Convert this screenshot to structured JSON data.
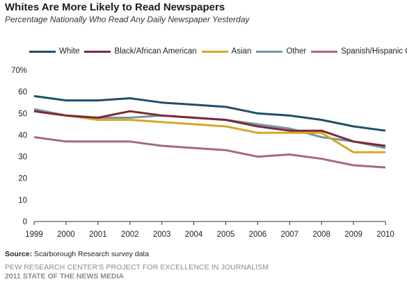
{
  "header": {
    "title": "Whites Are More Likely to Read Newspapers",
    "subtitle": "Percentage Nationally Who Read Any Daily Newspaper Yesterday"
  },
  "footer": {
    "source_label": "Source:",
    "source_text": " Scarborough Research survey data",
    "credit_line1": "PEW RESEARCH CENTER'S PROJECT FOR EXCELLENCE IN JOURNALISM",
    "credit_line2": "2011 STATE OF THE NEWS MEDIA"
  },
  "chart_data": {
    "type": "line",
    "title": "Whites Are More Likely to Read Newspapers",
    "subtitle": "Percentage Nationally Who Read Any Daily Newspaper Yesterday",
    "xlabel": "",
    "ylabel": "",
    "x": [
      "1999",
      "2000",
      "2001",
      "2002",
      "2003",
      "2004",
      "2005",
      "2006",
      "2007",
      "2008",
      "2009",
      "2010"
    ],
    "ylim": [
      0,
      70
    ],
    "yticks": [
      0,
      10,
      20,
      30,
      40,
      50,
      60,
      70
    ],
    "ytick_labels": [
      "0",
      "10",
      "20",
      "30",
      "40",
      "50",
      "60",
      "70%"
    ],
    "grid": false,
    "legend_position": "top",
    "series": [
      {
        "name": "White",
        "color": "#1f4e6e",
        "values": [
          58,
          56,
          56,
          57,
          55,
          54,
          53,
          50,
          49,
          47,
          44,
          42
        ]
      },
      {
        "name": "Black/African American",
        "color": "#7a2a33",
        "values": [
          51,
          49,
          48,
          51,
          49,
          48,
          47,
          44,
          42,
          42,
          37,
          35
        ]
      },
      {
        "name": "Asian",
        "color": "#d4a829",
        "values": [
          51,
          49,
          47,
          47,
          46,
          45,
          44,
          41,
          41,
          41,
          32,
          32
        ]
      },
      {
        "name": "Other",
        "color": "#7896a5",
        "values": [
          52,
          49,
          48,
          48,
          49,
          48,
          47,
          45,
          43,
          39,
          37,
          34
        ]
      },
      {
        "name": "Spanish/Hispanic Origin",
        "color": "#a56b77",
        "values": [
          39,
          37,
          37,
          37,
          35,
          34,
          33,
          30,
          31,
          29,
          26,
          25
        ]
      }
    ]
  }
}
